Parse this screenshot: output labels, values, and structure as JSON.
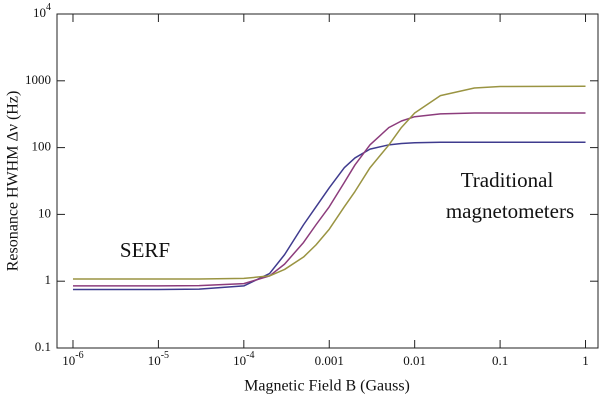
{
  "chart_data": {
    "type": "line",
    "xlabel": "Magnetic Field B (Gauss)",
    "ylabel": "Resonance HWHM Δν (Hz)",
    "annotations": [
      "SERF",
      "Traditional",
      "magnetometers"
    ],
    "xscale": "log",
    "yscale": "log",
    "x": [
      1e-06,
      1e-05,
      3e-05,
      0.0001,
      0.0002,
      0.0003,
      0.0005,
      0.0007,
      0.001,
      0.0015,
      0.002,
      0.003,
      0.005,
      0.007,
      0.01,
      0.02,
      0.05,
      0.1,
      1
    ],
    "series": [
      {
        "color": "#3f3b8e",
        "values": [
          0.75,
          0.75,
          0.76,
          0.85,
          1.3,
          2.5,
          7,
          13,
          25,
          50,
          70,
          95,
          110,
          115,
          118,
          120,
          120,
          120,
          120
        ]
      },
      {
        "color": "#8c3c7c",
        "values": [
          0.85,
          0.85,
          0.86,
          0.92,
          1.2,
          1.8,
          3.8,
          7,
          13,
          30,
          55,
          110,
          200,
          250,
          290,
          320,
          330,
          330,
          330
        ]
      },
      {
        "color": "#9a9442",
        "values": [
          1.08,
          1.08,
          1.08,
          1.1,
          1.2,
          1.5,
          2.3,
          3.5,
          6,
          13,
          22,
          50,
          110,
          200,
          330,
          600,
          780,
          820,
          830
        ]
      }
    ],
    "xlim": [
      6.5e-07,
      1.4
    ],
    "ylim": [
      0.1,
      10000
    ],
    "xticks": [
      {
        "value": 1e-06,
        "label": "10^-6"
      },
      {
        "value": 1e-05,
        "label": "10^-5"
      },
      {
        "value": 0.0001,
        "label": "10^-4"
      },
      0.001,
      0.01,
      0.1,
      1
    ],
    "yticks": [
      0.1,
      1,
      10,
      100,
      1000,
      {
        "value": 10000,
        "label": "10^4"
      }
    ]
  }
}
